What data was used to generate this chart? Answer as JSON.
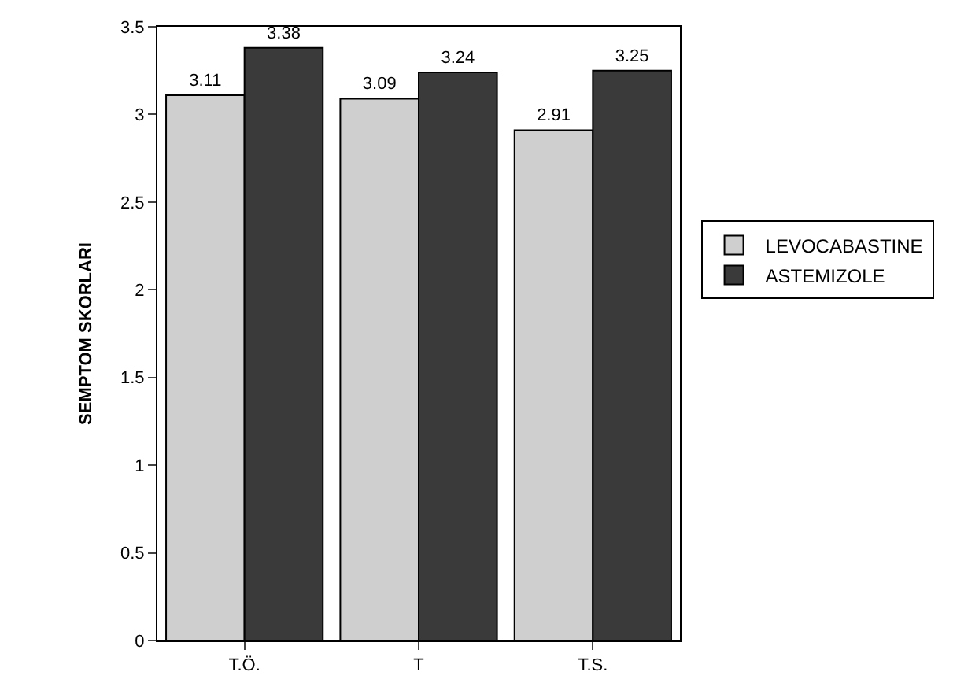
{
  "chart_data": {
    "type": "bar",
    "ylabel": "SEMPTOM SKORLARI",
    "categories": [
      "T.Ö.",
      "T",
      "T.S."
    ],
    "series": [
      {
        "name": "LEVOCABASTINE",
        "color": "#cfcfcf",
        "values": [
          3.11,
          3.09,
          2.91
        ]
      },
      {
        "name": "ASTEMIZOLE",
        "color": "#3a3a3a",
        "values": [
          3.38,
          3.24,
          3.25
        ]
      }
    ],
    "ylim": [
      0,
      3.5
    ],
    "yticks": [
      0,
      0.5,
      1,
      1.5,
      2,
      2.5,
      3,
      3.5
    ],
    "data_labels": true,
    "legend": "right"
  }
}
